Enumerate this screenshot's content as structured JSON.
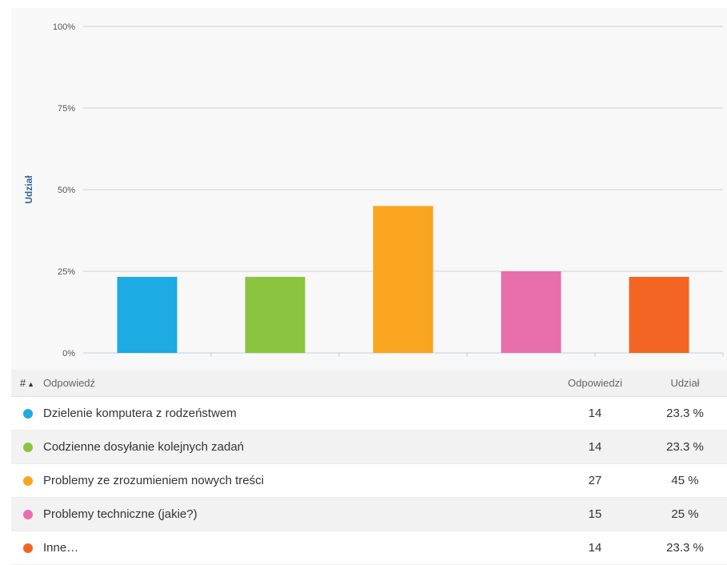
{
  "chart_data": {
    "type": "bar",
    "ylabel": "Udział",
    "xlabel": "",
    "ylim": [
      0,
      100
    ],
    "yticks": [
      0,
      25,
      50,
      75,
      100
    ],
    "ytick_labels": [
      "0%",
      "25%",
      "50%",
      "75%",
      "100%"
    ],
    "grid": true,
    "categories": [
      "Dzielenie komputera z rodzeństwem",
      "Codzienne dosyłanie kolejnych zadań",
      "Problemy ze zrozumieniem nowych treści",
      "Problemy techniczne (jakie?)",
      "Inne…"
    ],
    "values": [
      23.3,
      23.3,
      45,
      25,
      23.3
    ],
    "colors": [
      "#1eaae2",
      "#8bc43f",
      "#f9a51f",
      "#e86fab",
      "#f26522"
    ]
  },
  "table": {
    "headers": {
      "num": "#",
      "sort_icon": "sort-up-icon",
      "answer": "Odpowiedź",
      "count": "Odpowiedzi",
      "share": "Udział"
    },
    "rows": [
      {
        "answer": "Dzielenie komputera z rodzeństwem",
        "count": "14",
        "share": "23.3 %",
        "color": "#1eaae2"
      },
      {
        "answer": "Codzienne dosyłanie kolejnych zadań",
        "count": "14",
        "share": "23.3 %",
        "color": "#8bc43f"
      },
      {
        "answer": "Problemy ze zrozumieniem nowych treści",
        "count": "27",
        "share": "45 %",
        "color": "#f9a51f"
      },
      {
        "answer": "Problemy techniczne (jakie?)",
        "count": "15",
        "share": "25 %",
        "color": "#e86fab"
      },
      {
        "answer": "Inne…",
        "count": "14",
        "share": "23.3 %",
        "color": "#f26522"
      }
    ]
  }
}
